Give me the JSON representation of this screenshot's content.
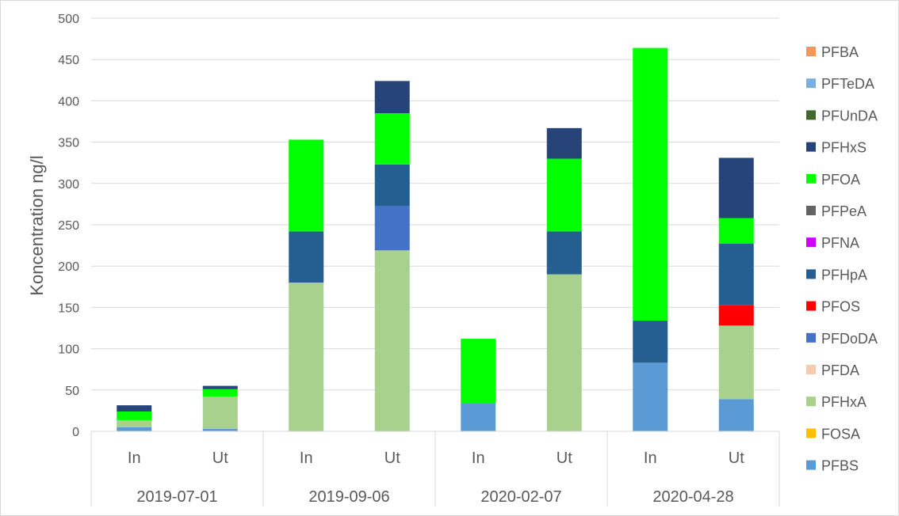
{
  "chart_data": {
    "type": "bar",
    "stacked": true,
    "title": "",
    "xlabel": "",
    "ylabel": "Koncentration ng/l",
    "ylim": [
      0,
      500
    ],
    "yticks": [
      0,
      50,
      100,
      150,
      200,
      250,
      300,
      350,
      400,
      450,
      500
    ],
    "grid": true,
    "legend_position": "right",
    "groups": [
      "2019-07-01",
      "2019-09-06",
      "2020-02-07",
      "2020-04-28"
    ],
    "categories": [
      "In",
      "Ut",
      "In",
      "Ut",
      "In",
      "Ut",
      "In",
      "Ut"
    ],
    "series": [
      {
        "name": "PFBS",
        "color": "#5b9bd5",
        "values": [
          5,
          3,
          0,
          0,
          34,
          0,
          83,
          39
        ]
      },
      {
        "name": "FOSA",
        "color": "#ffc000",
        "values": [
          0,
          0,
          0,
          0,
          0,
          0,
          0,
          0
        ]
      },
      {
        "name": "PFHxA",
        "color": "#a9d18e",
        "values": [
          8.5,
          39,
          180,
          219,
          0,
          190,
          0,
          89
        ]
      },
      {
        "name": "PFDA",
        "color": "#f8cbad",
        "values": [
          0,
          0,
          0,
          0,
          0,
          0,
          0,
          0
        ]
      },
      {
        "name": "PFDoDA",
        "color": "#4472c4",
        "values": [
          0,
          0,
          0,
          54,
          0,
          0,
          0,
          0
        ]
      },
      {
        "name": "PFOS",
        "color": "#ff0000",
        "values": [
          0,
          0,
          0,
          0,
          0,
          0,
          0,
          25
        ]
      },
      {
        "name": "PFHpA",
        "color": "#255e91",
        "values": [
          0,
          0,
          62,
          50,
          0,
          52,
          51,
          74
        ]
      },
      {
        "name": "PFNA",
        "color": "#cc00ff",
        "values": [
          0,
          0,
          0,
          0,
          0,
          0,
          0,
          0
        ]
      },
      {
        "name": "PFPeA",
        "color": "#636363",
        "values": [
          0,
          0,
          0,
          0,
          0,
          0,
          0,
          0
        ]
      },
      {
        "name": "PFOA",
        "color": "#00ff00",
        "values": [
          10.5,
          9,
          111,
          62,
          78,
          88,
          330,
          31
        ]
      },
      {
        "name": "PFHxS",
        "color": "#264478",
        "values": [
          7.5,
          4,
          0,
          39,
          0,
          37,
          0,
          73
        ]
      },
      {
        "name": "PFUnDA",
        "color": "#43682b",
        "values": [
          0,
          0,
          0,
          0,
          0,
          0,
          0,
          0
        ]
      },
      {
        "name": "PFTeDA",
        "color": "#7cafdd",
        "values": [
          0,
          0,
          0,
          0,
          0,
          0,
          0,
          0
        ]
      },
      {
        "name": "PFBA",
        "color": "#f4975a",
        "values": [
          0,
          0,
          0,
          0,
          0,
          0,
          0,
          0
        ]
      }
    ]
  }
}
